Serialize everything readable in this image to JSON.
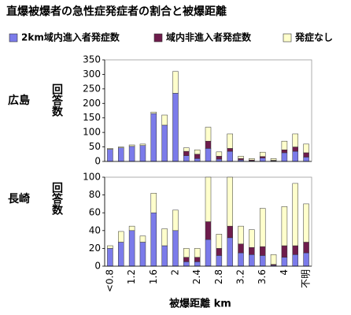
{
  "chart_data": [
    {
      "type": "bar",
      "stacked": true,
      "title": "直爆被爆者の急性症発症者の割合と被爆距離",
      "label": "広島",
      "ylabel": "回答数",
      "ylim": [
        0,
        350
      ],
      "yticks": [
        0,
        50,
        100,
        150,
        200,
        250,
        300,
        350
      ],
      "series": [
        {
          "name": "2km域内進入者発症数",
          "color": "#7b7bea",
          "values": [
            42,
            47,
            52,
            55,
            165,
            125,
            235,
            20,
            10,
            45,
            8,
            35,
            5,
            2,
            12,
            2,
            30,
            35,
            15
          ]
        },
        {
          "name": "域内非進入者発症数",
          "color": "#6e1c4c",
          "values": [
            0,
            0,
            0,
            0,
            0,
            0,
            0,
            15,
            15,
            25,
            10,
            10,
            5,
            3,
            5,
            2,
            10,
            15,
            15
          ]
        },
        {
          "name": "発症なし",
          "color": "#ffffcc",
          "values": [
            3,
            3,
            5,
            5,
            5,
            35,
            75,
            12,
            15,
            48,
            15,
            50,
            8,
            5,
            15,
            6,
            30,
            45,
            30
          ]
        }
      ]
    },
    {
      "type": "bar",
      "stacked": true,
      "label": "長崎",
      "ylabel": "回答数",
      "xlabel": "被爆距離 km",
      "categories": [
        "<0.8",
        null,
        "1.2",
        null,
        "1.6",
        null,
        "2",
        null,
        "2.4",
        null,
        "2.8",
        null,
        "3.2",
        null,
        "3.6",
        null,
        "4",
        null,
        "不明"
      ],
      "ylim": [
        0,
        100
      ],
      "yticks": [
        0,
        20,
        40,
        60,
        80,
        100
      ],
      "series": [
        {
          "color": "#7b7bea",
          "values": [
            20,
            27,
            40,
            27,
            60,
            23,
            40,
            5,
            5,
            30,
            12,
            32,
            15,
            13,
            12,
            1,
            10,
            13,
            15
          ]
        },
        {
          "color": "#6e1c4c",
          "values": [
            0,
            0,
            0,
            0,
            0,
            0,
            0,
            5,
            5,
            20,
            8,
            13,
            10,
            8,
            10,
            1,
            13,
            10,
            12
          ]
        },
        {
          "color": "#ffffcc",
          "values": [
            3,
            12,
            5,
            7,
            22,
            19,
            23,
            10,
            10,
            50,
            16,
            55,
            20,
            20,
            43,
            11,
            44,
            70,
            43
          ]
        }
      ]
    }
  ]
}
